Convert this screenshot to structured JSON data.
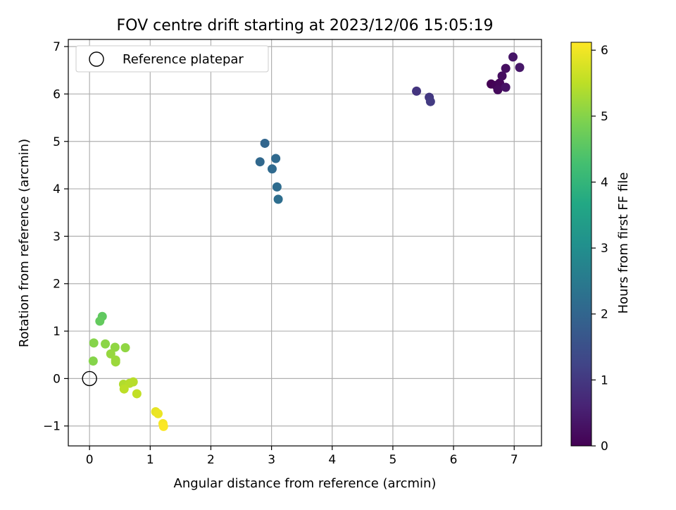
{
  "chart_data": {
    "type": "scatter",
    "title": "FOV centre drift starting at 2023/12/06 15:05:19",
    "xlabel": "Angular distance from reference (arcmin)",
    "ylabel": "Rotation from reference (arcmin)",
    "xlim": [
      -0.35,
      7.45
    ],
    "ylim": [
      -1.42,
      7.15
    ],
    "xticks": [
      0,
      1,
      2,
      3,
      4,
      5,
      6,
      7
    ],
    "yticks": [
      -1,
      0,
      1,
      2,
      3,
      4,
      5,
      6,
      7
    ],
    "grid": true,
    "legend": {
      "placement": "top-left",
      "entries": [
        "Reference platepar"
      ]
    },
    "reference_point": {
      "x": 0,
      "y": 0,
      "label": "Reference platepar"
    },
    "colorbar": {
      "label": "Hours from first FF file",
      "colormap": "viridis",
      "range": [
        0,
        6.12
      ],
      "ticks": [
        0,
        1,
        2,
        3,
        4,
        5,
        6
      ]
    },
    "points": [
      {
        "x": 6.62,
        "y": 6.21,
        "c": 0.0
      },
      {
        "x": 6.7,
        "y": 6.18,
        "c": 0.05
      },
      {
        "x": 6.76,
        "y": 6.23,
        "c": 0.1
      },
      {
        "x": 6.73,
        "y": 6.09,
        "c": 0.15
      },
      {
        "x": 6.8,
        "y": 6.38,
        "c": 0.2
      },
      {
        "x": 6.86,
        "y": 6.54,
        "c": 0.25
      },
      {
        "x": 6.86,
        "y": 6.14,
        "c": 0.3
      },
      {
        "x": 6.98,
        "y": 6.78,
        "c": 0.35
      },
      {
        "x": 7.09,
        "y": 6.56,
        "c": 0.4
      },
      {
        "x": 5.39,
        "y": 6.06,
        "c": 0.95
      },
      {
        "x": 5.6,
        "y": 5.93,
        "c": 1.0
      },
      {
        "x": 5.62,
        "y": 5.84,
        "c": 1.05
      },
      {
        "x": 2.89,
        "y": 4.96,
        "c": 2.0
      },
      {
        "x": 2.81,
        "y": 4.57,
        "c": 2.05
      },
      {
        "x": 3.07,
        "y": 4.64,
        "c": 2.1
      },
      {
        "x": 3.01,
        "y": 4.42,
        "c": 2.1
      },
      {
        "x": 3.09,
        "y": 4.04,
        "c": 2.15
      },
      {
        "x": 3.11,
        "y": 3.78,
        "c": 2.2
      },
      {
        "x": 0.21,
        "y": 1.31,
        "c": 4.6
      },
      {
        "x": 0.17,
        "y": 1.21,
        "c": 4.65
      },
      {
        "x": 0.07,
        "y": 0.75,
        "c": 5.0
      },
      {
        "x": 0.26,
        "y": 0.73,
        "c": 5.05
      },
      {
        "x": 0.42,
        "y": 0.66,
        "c": 5.1
      },
      {
        "x": 0.59,
        "y": 0.65,
        "c": 5.1
      },
      {
        "x": 0.35,
        "y": 0.52,
        "c": 5.15
      },
      {
        "x": 0.43,
        "y": 0.39,
        "c": 5.2
      },
      {
        "x": 0.43,
        "y": 0.35,
        "c": 5.2
      },
      {
        "x": 0.06,
        "y": 0.37,
        "c": 5.0
      },
      {
        "x": 0.56,
        "y": -0.12,
        "c": 5.4
      },
      {
        "x": 0.72,
        "y": -0.07,
        "c": 5.45
      },
      {
        "x": 0.66,
        "y": -0.1,
        "c": 5.45
      },
      {
        "x": 0.57,
        "y": -0.22,
        "c": 5.5
      },
      {
        "x": 0.78,
        "y": -0.32,
        "c": 5.55
      },
      {
        "x": 1.09,
        "y": -0.7,
        "c": 5.9
      },
      {
        "x": 1.13,
        "y": -0.74,
        "c": 5.95
      },
      {
        "x": 1.21,
        "y": -0.95,
        "c": 6.05
      },
      {
        "x": 1.22,
        "y": -1.01,
        "c": 6.1
      }
    ]
  }
}
